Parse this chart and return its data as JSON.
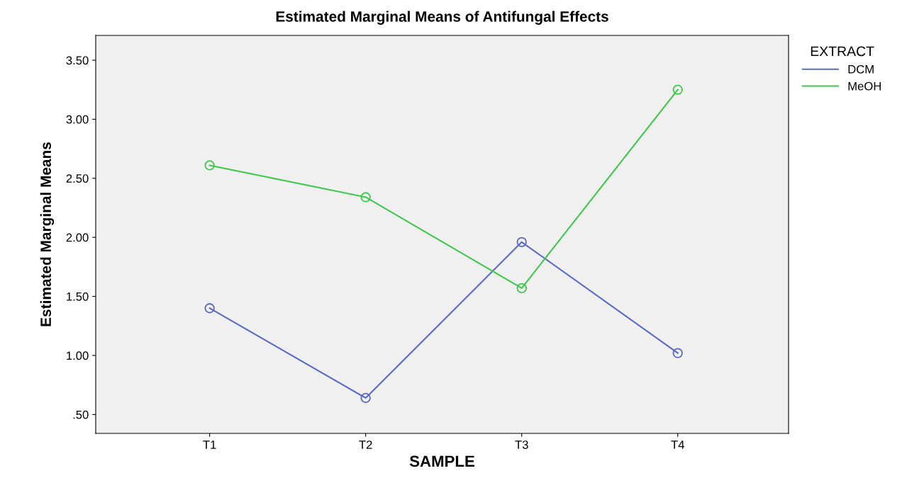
{
  "chart_data": {
    "type": "line",
    "title": "Estimated Marginal Means of Antifungal Effects",
    "xlabel": "SAMPLE",
    "ylabel": "Estimated Marginal Means",
    "legend_title": "EXTRACT",
    "categories": [
      "T1",
      "T2",
      "T3",
      "T4"
    ],
    "series": [
      {
        "name": "DCM",
        "color": "#5a6ac8",
        "values": [
          1.4,
          0.64,
          1.96,
          1.02
        ]
      },
      {
        "name": "MeOH",
        "color": "#3cc84a",
        "values": [
          2.61,
          2.34,
          1.57,
          3.25
        ]
      }
    ],
    "ylim": [
      0.34,
      3.71
    ],
    "yticks": [
      {
        "value": 0.5,
        "label": ".50"
      },
      {
        "value": 1.0,
        "label": "1.00"
      },
      {
        "value": 1.5,
        "label": "1.50"
      },
      {
        "value": 2.0,
        "label": "2.00"
      },
      {
        "value": 2.5,
        "label": "2.50"
      },
      {
        "value": 3.0,
        "label": "3.00"
      },
      {
        "value": 3.5,
        "label": "3.50"
      }
    ],
    "marker": "circle",
    "line_style": "solid",
    "grid": false,
    "legend": "top right"
  }
}
